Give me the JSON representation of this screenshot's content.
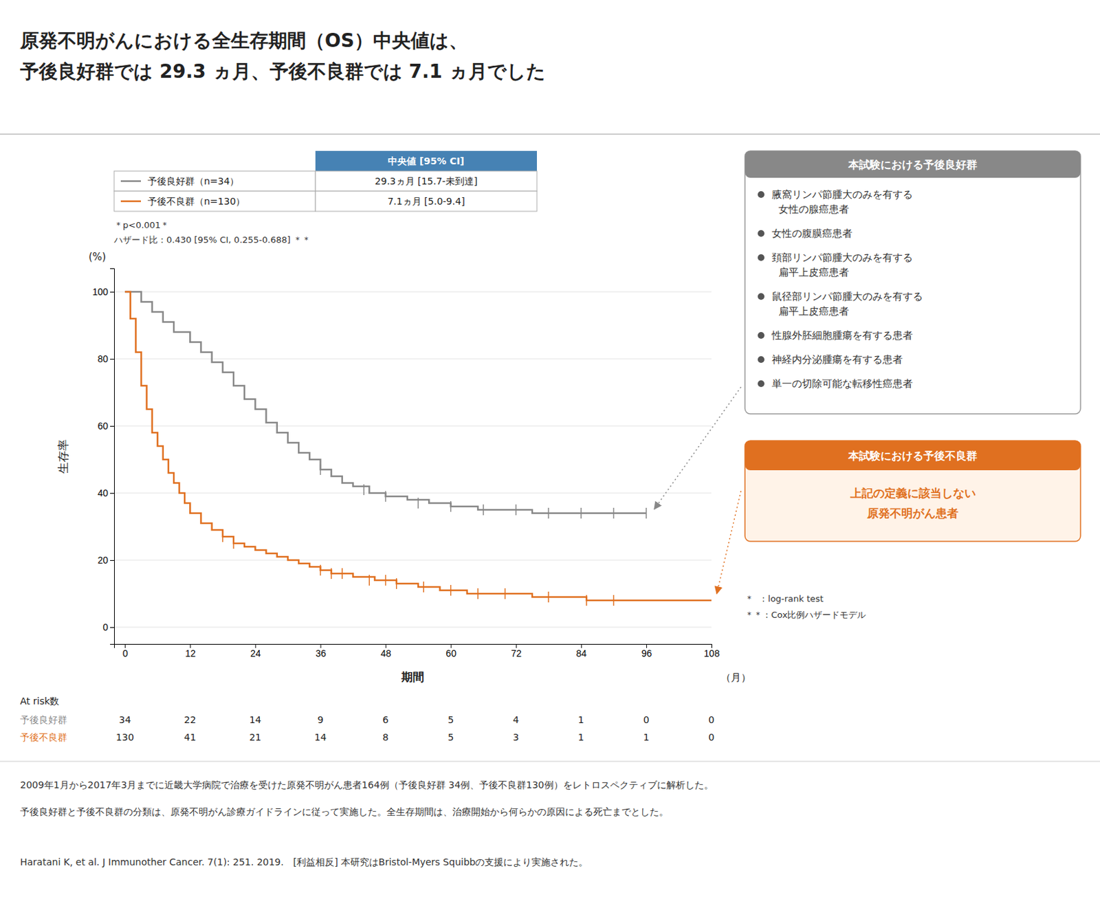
{
  "chart_data": {
    "type": "step",
    "title": "原発不明がんにおける全生存期間（OS）中央値は、\n予後良好群では 29.3 ヵ月、予後不良群では 7.1 ヵ月でした",
    "x_label": "期間",
    "x_unit": "（月）",
    "y_label": "生存率",
    "y_unit": "(%)",
    "xlim": [
      -2,
      108
    ],
    "ylim": [
      -5,
      107
    ],
    "xticks": [
      0,
      12,
      24,
      36,
      48,
      60,
      72,
      84,
      96,
      108
    ],
    "yticks": [
      0,
      20,
      40,
      60,
      80,
      100
    ],
    "grid": true,
    "legend_header": "中央値 [95% CI]",
    "series": [
      {
        "name": "予後良好群（n=34）",
        "color": "#888888",
        "median": "29.3ヵ月 [15.7-未到達]",
        "x": [
          0,
          3,
          5,
          7,
          9,
          12,
          14,
          16,
          18,
          20,
          22,
          24,
          26,
          28,
          30,
          32,
          34,
          36,
          38,
          40,
          42,
          45,
          48,
          52,
          56,
          60,
          65,
          70,
          75,
          80,
          85,
          90,
          96
        ],
        "values": [
          100,
          97,
          94,
          91,
          88,
          85,
          82,
          79,
          76,
          72,
          68,
          65,
          61,
          58,
          55,
          52,
          50,
          47,
          45,
          43,
          42,
          40,
          39,
          38,
          37,
          36,
          35,
          35,
          34,
          34,
          34,
          34,
          34
        ],
        "censored": {
          "x": [
            36,
            44,
            48,
            54,
            60,
            66,
            72,
            78,
            84,
            90,
            96
          ],
          "values": [
            47,
            41,
            39,
            37,
            36,
            35,
            35,
            34,
            34,
            34,
            34
          ]
        }
      },
      {
        "name": "予後不良群（n=130）",
        "color": "#E07020",
        "median": "7.1ヵ月 [5.0-9.4]",
        "x": [
          0,
          1,
          2,
          3,
          4,
          5,
          6,
          7,
          8,
          9,
          10,
          11,
          12,
          14,
          16,
          18,
          20,
          22,
          24,
          26,
          28,
          30,
          32,
          34,
          36,
          38,
          40,
          42,
          44,
          46,
          48,
          50,
          52,
          54,
          56,
          58,
          60,
          63,
          66,
          70,
          75,
          80,
          85,
          90,
          96,
          102,
          108
        ],
        "values": [
          100,
          92,
          82,
          72,
          65,
          58,
          54,
          50,
          46,
          43,
          40,
          37,
          34,
          31,
          29,
          27,
          25,
          24,
          23,
          22,
          21,
          20,
          19,
          18,
          17,
          16,
          16,
          15,
          15,
          14,
          14,
          13,
          13,
          12,
          12,
          11,
          11,
          10,
          10,
          10,
          9,
          9,
          8,
          8,
          8,
          8,
          8
        ],
        "censored": {
          "x": [
            18,
            20,
            36,
            38,
            40,
            45,
            48,
            50,
            55,
            60,
            65,
            70,
            78,
            85,
            90
          ],
          "values": [
            27,
            25,
            17,
            16,
            16,
            14,
            14,
            13,
            12,
            11,
            10,
            10,
            9,
            8,
            8
          ]
        }
      }
    ],
    "footnotes": [
      "＊p<0.001＊",
      "ハザード比：0.430 [95% CI, 0.255-0.688] ＊＊"
    ],
    "test_notes": [
      "＊  ：log-rank test",
      "＊＊：Cox比例ハザードモデル"
    ],
    "at_risk": {
      "label": "At risk数",
      "rows": [
        {
          "name": "予後良好群",
          "values": [
            34,
            22,
            14,
            9,
            6,
            5,
            4,
            1,
            0,
            0
          ]
        },
        {
          "name": "予後不良群",
          "values": [
            130,
            41,
            21,
            14,
            8,
            5,
            3,
            1,
            1,
            0
          ]
        }
      ]
    },
    "boxes": [
      {
        "title": "本試験における予後良好群",
        "items": [
          "腋窩リンパ節腫大のみを有する\n  女性の腺癌患者",
          "女性の腹膜癌患者",
          "頚部リンパ節腫大のみを有する\n  扁平上皮癌患者",
          "鼠径部リンパ節腫大のみを有する\n  扁平上皮癌患者",
          "性腺外胚細胞腫瘍を有する患者",
          "神経内分泌腫瘍を有する患者",
          "単一の切除可能な転移性癌患者"
        ]
      },
      {
        "title": "本試験における予後不良群",
        "text": "上記の定義に該当しない\n原発不明がん患者"
      }
    ],
    "notes": [
      "2009年1月から2017年3月までに近畿大学病院で治療を受けた原発不明がん患者164例（予後良好群 34例、予後不良群130例）をレトロスペクティブに解析した。",
      "予後良好群と予後不良群の分類は、原発不明がん診療ガイドラインに従って実施した。全生存期間は、治療開始から何らかの原因による死亡までとした。",
      "Haratani K, et al. J Immunother Cancer. 7(1): 251. 2019.　[利益相反] 本研究はBristol-Myers Squibbの支援により実施された。"
    ]
  }
}
